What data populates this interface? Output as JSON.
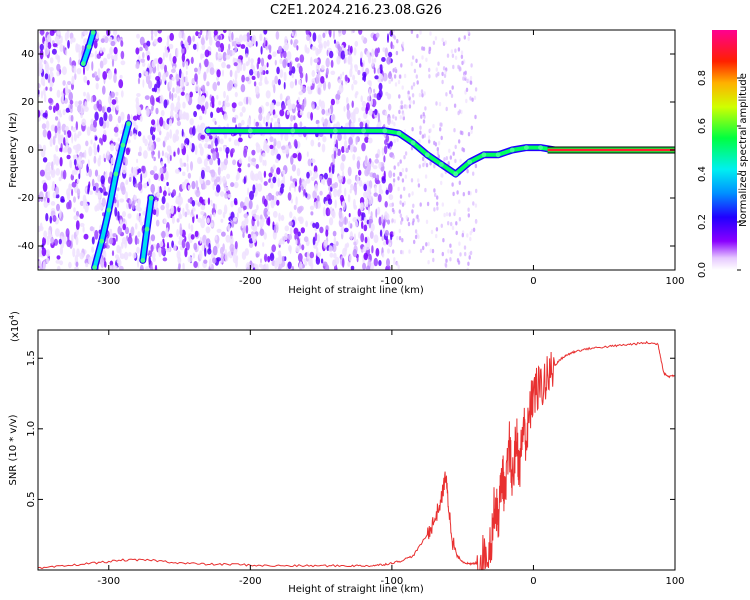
{
  "title": "C2E1.2024.216.23.08.G26",
  "chart_data": [
    {
      "type": "heatmap",
      "xlabel": "Height of straight line (km)",
      "ylabel": "Frequency (Hz)",
      "xlim": [
        -350,
        100
      ],
      "ylim": [
        -50,
        50
      ],
      "xticks": [
        -300,
        -200,
        -100,
        0,
        100
      ],
      "yticks": [
        -40,
        -20,
        0,
        20,
        40
      ],
      "colorbar": {
        "label": "Normalized spectral amplitude",
        "range": [
          0,
          1
        ],
        "ticks": [
          0.0,
          0.2,
          0.4,
          0.6,
          0.8
        ],
        "colormap": "rainbow (white-purple-blue-cyan-green-yellow-orange-red-magenta)"
      },
      "traces": [
        {
          "x": [
            -310,
            -305,
            -300,
            -295,
            -290,
            -286
          ],
          "y": [
            -49,
            -38,
            -25,
            -10,
            2,
            11
          ]
        },
        {
          "x": [
            -276,
            -273,
            -270
          ],
          "y": [
            -46,
            -33,
            -20
          ]
        },
        {
          "x": [
            -318,
            -314,
            -311
          ],
          "y": [
            36,
            43,
            49
          ]
        },
        {
          "x": [
            -230,
            -200,
            -170,
            -140,
            -120,
            -105,
            -95,
            -85,
            -75,
            -65,
            -55,
            -45,
            -35,
            -25,
            -15,
            -5,
            5,
            15,
            100
          ],
          "y": [
            8,
            8,
            8,
            8,
            8,
            8,
            7,
            3,
            -2,
            -6,
            -10,
            -5,
            -2,
            -2,
            0,
            1,
            1,
            0,
            0
          ]
        }
      ]
    },
    {
      "type": "line",
      "xlabel": "Height of straight line (km)",
      "ylabel": "SNR (10 * v/v)",
      "y_multiplier": "(x10",
      "y_multiplier_exp": "4",
      "xlim": [
        -350,
        100
      ],
      "ylim": [
        0,
        1.7
      ],
      "xticks": [
        -300,
        -200,
        -100,
        0,
        100
      ],
      "yticks": [
        0.5,
        1.0,
        1.5
      ],
      "ytick_labels": [
        "0.5",
        "1.0",
        "1.5"
      ],
      "line_color": "#e83030",
      "series": [
        {
          "x": [
            -350,
            -330,
            -310,
            -290,
            -270,
            -250,
            -230,
            -210,
            -190,
            -170,
            -150,
            -130,
            -115,
            -105,
            -95,
            -85,
            -75,
            -70,
            -65,
            -62,
            -60,
            -57,
            -54,
            -50,
            -45,
            -40,
            -35,
            -30,
            -27,
            -25,
            -22,
            -20,
            -17,
            -15,
            -12,
            -10,
            -7,
            -5,
            -2,
            0,
            5,
            10,
            15,
            20,
            25,
            30,
            40,
            50,
            60,
            70,
            80,
            88,
            92,
            95,
            100
          ],
          "y": [
            0.01,
            0.03,
            0.05,
            0.07,
            0.07,
            0.05,
            0.04,
            0.04,
            0.03,
            0.03,
            0.03,
            0.03,
            0.03,
            0.04,
            0.06,
            0.1,
            0.25,
            0.35,
            0.5,
            0.68,
            0.45,
            0.2,
            0.1,
            0.06,
            0.04,
            0.05,
            0.09,
            0.2,
            0.5,
            0.35,
            0.7,
            0.5,
            0.9,
            0.6,
            0.95,
            0.7,
            1.05,
            0.9,
            1.15,
            1.25,
            1.3,
            1.35,
            1.45,
            1.5,
            1.53,
            1.55,
            1.57,
            1.58,
            1.59,
            1.6,
            1.61,
            1.6,
            1.4,
            1.37,
            1.38
          ]
        }
      ]
    }
  ]
}
